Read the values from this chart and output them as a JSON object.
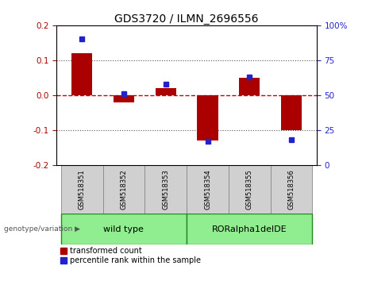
{
  "title": "GDS3720 / ILMN_2696556",
  "samples": [
    "GSM518351",
    "GSM518352",
    "GSM518353",
    "GSM518354",
    "GSM518355",
    "GSM518356"
  ],
  "red_values": [
    0.12,
    -0.02,
    0.02,
    -0.13,
    0.05,
    -0.1
  ],
  "blue_values_pct": [
    90,
    51,
    58,
    17,
    63,
    18
  ],
  "group_label_prefix": "genotype/variation",
  "wild_type_label": "wild type",
  "rorA_label": "RORalpha1delDE",
  "ylim_left": [
    -0.2,
    0.2
  ],
  "ylim_right": [
    0,
    100
  ],
  "yticks_left": [
    -0.2,
    -0.1,
    0.0,
    0.1,
    0.2
  ],
  "yticks_right": [
    0,
    25,
    50,
    75,
    100
  ],
  "red_color": "#AA0000",
  "blue_color": "#2222CC",
  "zero_line_color": "#CC0000",
  "dotted_line_color": "#555555",
  "bar_width": 0.5,
  "legend_red": "transformed count",
  "legend_blue": "percentile rank within the sample",
  "background_color": "#ffffff",
  "sample_box_color": "#d0d0d0",
  "group_green": "#90EE90",
  "group_border": "#228822"
}
